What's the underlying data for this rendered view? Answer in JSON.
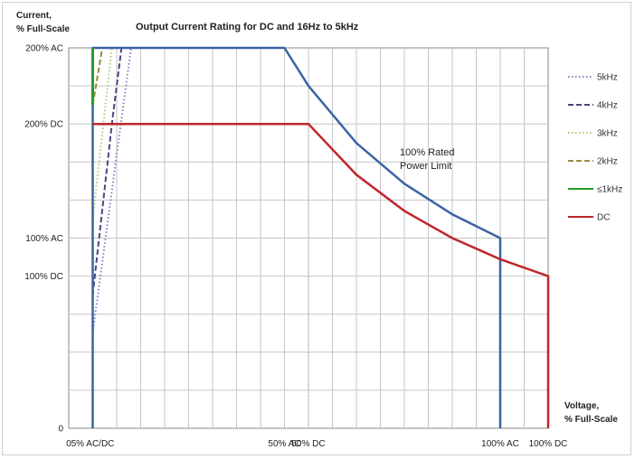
{
  "chart_data": {
    "type": "line",
    "title": "Output Current Rating for DC and 16Hz to 5kHz",
    "ylabel_lines": [
      "Current,",
      "% Full-Scale"
    ],
    "xlabel_lines": [
      "Voltage,",
      "% Full-Scale"
    ],
    "x_ticks": [
      {
        "label": "0",
        "x": 0
      },
      {
        "label": "5% AC/DC",
        "x": 5
      },
      {
        "label": "50% AC",
        "x": 45
      },
      {
        "label": "50% DC",
        "x": 50
      },
      {
        "label": "100% AC",
        "x": 90
      },
      {
        "label": "100% DC",
        "x": 100
      }
    ],
    "y_ticks": [
      {
        "label": "0",
        "y": 0
      },
      {
        "label": "100% DC",
        "y": 80
      },
      {
        "label": "100% AC",
        "y": 100
      },
      {
        "label": "200% DC",
        "y": 160
      },
      {
        "label": "200% AC",
        "y": 200
      }
    ],
    "xlim": [
      0,
      100
    ],
    "ylim": [
      0,
      200
    ],
    "grid": true,
    "annotation_lines": [
      "100% Rated",
      "Power Limit"
    ],
    "legend_position": "right",
    "series": [
      {
        "name": "5kHz",
        "color": "#8b7fc0",
        "dash": "dotted",
        "points": [
          [
            5,
            50
          ],
          [
            13,
            200
          ]
        ]
      },
      {
        "name": "4kHz",
        "color": "#4a4482",
        "dash": "dashed",
        "points": [
          [
            5,
            70
          ],
          [
            9,
            160
          ],
          [
            11,
            200
          ]
        ]
      },
      {
        "name": "3kHz",
        "color": "#b8c47e",
        "dash": "dotted",
        "points": [
          [
            5,
            110
          ],
          [
            9,
            200
          ]
        ]
      },
      {
        "name": "2kHz",
        "color": "#9a8a3c",
        "dash": "dashed",
        "points": [
          [
            5,
            170
          ],
          [
            7,
            200
          ]
        ]
      },
      {
        "name": "≤1kHz",
        "color": "#2a9a2a",
        "dash": "solid",
        "points": [
          [
            5,
            200
          ],
          [
            5,
            170
          ]
        ]
      },
      {
        "name": "DC",
        "color": "#c0262a",
        "dash": "solid",
        "points": [
          [
            5,
            160
          ],
          [
            50,
            160
          ],
          [
            50,
            160
          ],
          [
            60,
            133.3
          ],
          [
            70,
            114.3
          ],
          [
            80,
            100
          ],
          [
            90,
            88.9
          ],
          [
            100,
            80
          ],
          [
            100,
            0
          ]
        ]
      }
    ],
    "ac_envelope": {
      "color": "#3a64a4",
      "points": [
        [
          5,
          0
        ],
        [
          5,
          200
        ],
        [
          45,
          200
        ],
        [
          50,
          180
        ],
        [
          60,
          150
        ],
        [
          70,
          128.6
        ],
        [
          80,
          112.5
        ],
        [
          90,
          100
        ],
        [
          90,
          0
        ]
      ]
    }
  }
}
